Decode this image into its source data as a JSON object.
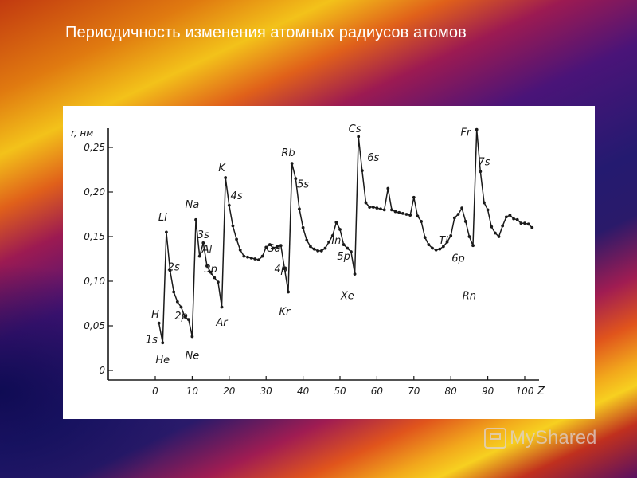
{
  "slide": {
    "title": "Периодичность изменения атомных радиусов атомов",
    "watermark": "MyShared"
  },
  "chart_data": {
    "type": "line",
    "ylabel": "r, нм",
    "xlabel": "Z",
    "xlim": [
      -10,
      105
    ],
    "ylim": [
      0,
      0.26
    ],
    "x_ticks": [
      0,
      10,
      20,
      30,
      40,
      50,
      60,
      70,
      80,
      90,
      100
    ],
    "y_ticks": [
      {
        "value": 0,
        "label": "0"
      },
      {
        "value": 0.05,
        "label": "0,05"
      },
      {
        "value": 0.1,
        "label": "0,10"
      },
      {
        "value": 0.15,
        "label": "0,15"
      },
      {
        "value": 0.2,
        "label": "0,20"
      },
      {
        "value": 0.25,
        "label": "0,25"
      }
    ],
    "grid": false,
    "x": [
      1,
      2,
      3,
      4,
      5,
      6,
      7,
      8,
      9,
      10,
      11,
      12,
      13,
      14,
      15,
      16,
      17,
      18,
      19,
      20,
      21,
      22,
      23,
      24,
      25,
      26,
      27,
      28,
      29,
      30,
      31,
      32,
      33,
      34,
      35,
      36,
      37,
      38,
      39,
      40,
      41,
      42,
      43,
      44,
      45,
      46,
      47,
      48,
      49,
      50,
      51,
      52,
      53,
      54,
      55,
      56,
      57,
      58,
      59,
      60,
      61,
      62,
      63,
      64,
      65,
      66,
      67,
      68,
      69,
      70,
      71,
      72,
      73,
      74,
      75,
      76,
      77,
      78,
      79,
      80,
      81,
      82,
      83,
      84,
      85,
      86,
      87,
      88,
      89,
      90,
      91,
      92,
      93,
      94,
      95,
      96,
      97,
      98,
      99,
      100,
      101,
      102
    ],
    "y": [
      0.053,
      0.031,
      0.155,
      0.112,
      0.088,
      0.077,
      0.071,
      0.06,
      0.057,
      0.038,
      0.169,
      0.128,
      0.143,
      0.117,
      0.11,
      0.104,
      0.099,
      0.071,
      0.216,
      0.185,
      0.162,
      0.147,
      0.135,
      0.128,
      0.127,
      0.126,
      0.125,
      0.124,
      0.128,
      0.138,
      0.141,
      0.137,
      0.139,
      0.14,
      0.114,
      0.088,
      0.232,
      0.215,
      0.181,
      0.16,
      0.146,
      0.139,
      0.136,
      0.134,
      0.134,
      0.137,
      0.144,
      0.151,
      0.166,
      0.158,
      0.141,
      0.137,
      0.133,
      0.108,
      0.262,
      0.224,
      0.188,
      0.183,
      0.183,
      0.182,
      0.181,
      0.18,
      0.204,
      0.18,
      0.178,
      0.177,
      0.176,
      0.175,
      0.174,
      0.194,
      0.173,
      0.167,
      0.149,
      0.141,
      0.137,
      0.135,
      0.136,
      0.139,
      0.144,
      0.151,
      0.171,
      0.175,
      0.182,
      0.167,
      0.15,
      0.14,
      0.27,
      0.223,
      0.188,
      0.18,
      0.161,
      0.154,
      0.15,
      0.162,
      0.172,
      0.174,
      0.17,
      0.169,
      0.165,
      0.165,
      0.164,
      0.16
    ],
    "annotations": [
      {
        "label": "H",
        "x": 0,
        "y": 0.059
      },
      {
        "label": "1s",
        "x": -1,
        "y": 0.031
      },
      {
        "label": "He",
        "x": 2,
        "y": 0.008
      },
      {
        "label": "Li",
        "x": 2,
        "y": 0.168
      },
      {
        "label": "2s",
        "x": 5,
        "y": 0.112
      },
      {
        "label": "2p",
        "x": 7,
        "y": 0.057
      },
      {
        "label": "Ne",
        "x": 10,
        "y": 0.013
      },
      {
        "label": "Na",
        "x": 10,
        "y": 0.182
      },
      {
        "label": "3s",
        "x": 13,
        "y": 0.148
      },
      {
        "label": "Al",
        "x": 14,
        "y": 0.132
      },
      {
        "label": "3p",
        "x": 15,
        "y": 0.11
      },
      {
        "label": "Ar",
        "x": 18,
        "y": 0.05
      },
      {
        "label": "K",
        "x": 18,
        "y": 0.223
      },
      {
        "label": "4s",
        "x": 22,
        "y": 0.192
      },
      {
        "label": "Ga",
        "x": 32,
        "y": 0.133
      },
      {
        "label": "4p",
        "x": 34,
        "y": 0.11
      },
      {
        "label": "Kr",
        "x": 35,
        "y": 0.062
      },
      {
        "label": "Rb",
        "x": 36,
        "y": 0.24
      },
      {
        "label": "5s",
        "x": 40,
        "y": 0.205
      },
      {
        "label": "In",
        "x": 49,
        "y": 0.142
      },
      {
        "label": "5p",
        "x": 51,
        "y": 0.124
      },
      {
        "label": "Xe",
        "x": 52,
        "y": 0.08
      },
      {
        "label": "Cs",
        "x": 54,
        "y": 0.267
      },
      {
        "label": "6s",
        "x": 59,
        "y": 0.235
      },
      {
        "label": "Tl",
        "x": 78,
        "y": 0.142
      },
      {
        "label": "6p",
        "x": 82,
        "y": 0.122
      },
      {
        "label": "Rn",
        "x": 85,
        "y": 0.08
      },
      {
        "label": "Fr",
        "x": 84,
        "y": 0.263
      },
      {
        "label": "7s",
        "x": 89,
        "y": 0.23
      }
    ],
    "colors": {
      "line": "#1a1a1a",
      "panel": "#ffffff"
    }
  }
}
